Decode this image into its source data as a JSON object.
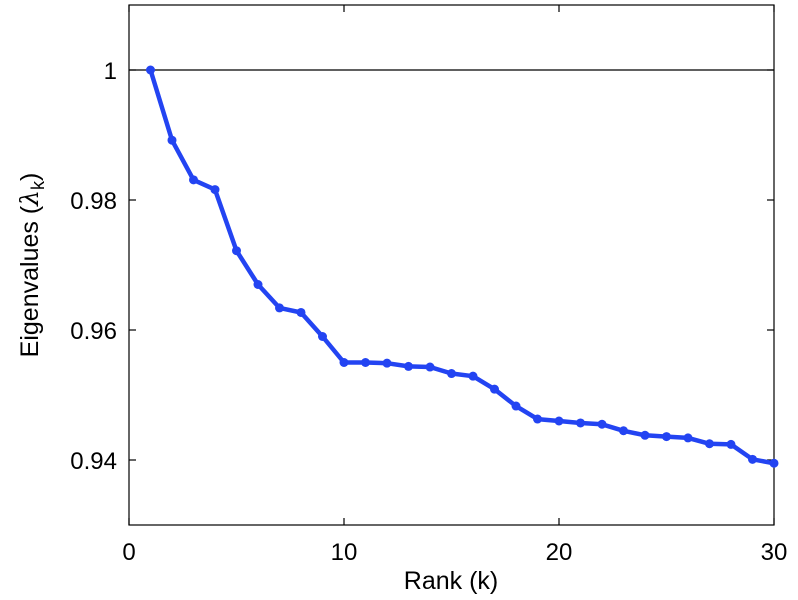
{
  "chart_data": {
    "type": "line",
    "xlabel": "Rank (k)",
    "ylabel_main": "Eigenvalues (",
    "ylabel_symbol": "λ",
    "ylabel_sub": "k",
    "ylabel_close": ")",
    "xlim": [
      0,
      30
    ],
    "ylim": [
      0.93,
      1.01
    ],
    "xticks": [
      0,
      10,
      20,
      30
    ],
    "xtick_labels": [
      "0",
      "10",
      "20",
      "30"
    ],
    "yticks": [
      0.94,
      0.96,
      0.98,
      1.0
    ],
    "ytick_labels": [
      "0.94",
      "0.96",
      "0.98",
      "1"
    ],
    "reference_line_y": 1.0,
    "grid": false,
    "colors": {
      "series": "#2344f2",
      "reference_line": "#000000",
      "axes": "#000000"
    },
    "series": [
      {
        "x": [
          1,
          2,
          3,
          4,
          5,
          6,
          7,
          8,
          9,
          10,
          11,
          12,
          13,
          14,
          15,
          16,
          17,
          18,
          19,
          20,
          21,
          22,
          23,
          24,
          25,
          26,
          27,
          28,
          29,
          30
        ],
        "values": [
          1.0,
          0.9892,
          0.9831,
          0.9816,
          0.9722,
          0.967,
          0.9634,
          0.9627,
          0.959,
          0.955,
          0.955,
          0.9549,
          0.9544,
          0.9543,
          0.9533,
          0.9529,
          0.9509,
          0.9483,
          0.9463,
          0.946,
          0.9457,
          0.9455,
          0.9445,
          0.9438,
          0.9436,
          0.9434,
          0.9425,
          0.9424,
          0.9401,
          0.9395
        ]
      }
    ]
  }
}
